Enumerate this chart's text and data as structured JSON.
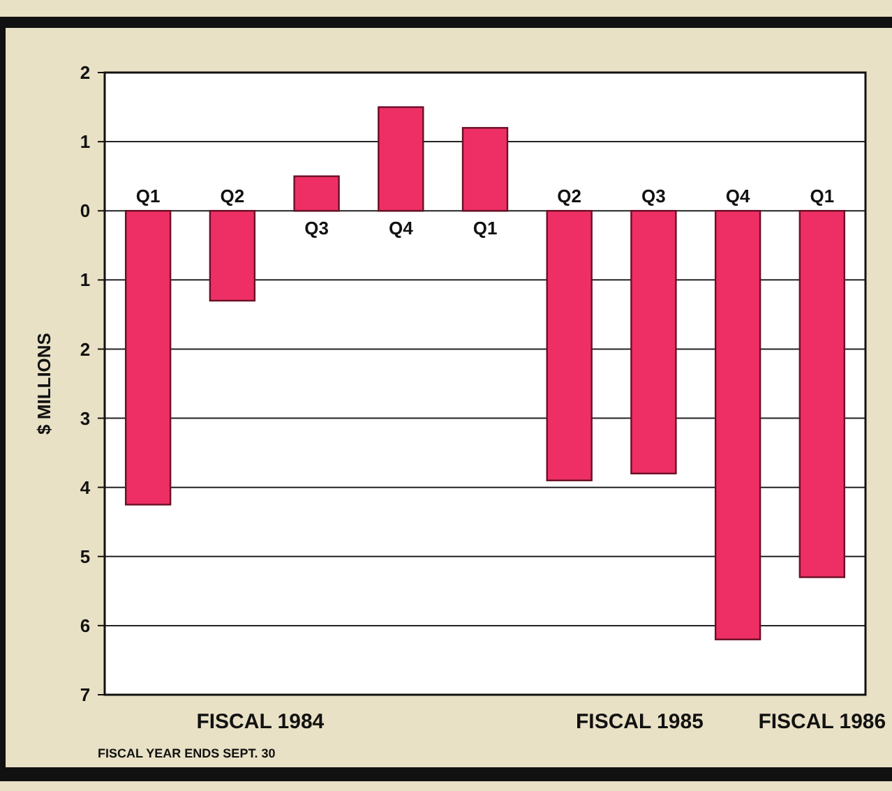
{
  "chart_data": {
    "type": "bar",
    "ylabel": "$ MILLIONS",
    "categories": [
      "Q1",
      "Q2",
      "Q3",
      "Q4",
      "Q1",
      "Q2",
      "Q3",
      "Q4",
      "Q1"
    ],
    "values": [
      -4.25,
      -1.3,
      0.5,
      1.5,
      1.2,
      -3.9,
      -3.8,
      -6.2,
      -5.3
    ],
    "color": "#ee2f66",
    "ylim": [
      -7,
      2
    ],
    "yticks": [
      2,
      1,
      0,
      {
        "value": -1,
        "label": "1"
      },
      {
        "value": -2,
        "label": "2"
      },
      {
        "value": -3,
        "label": "3"
      },
      {
        "value": -4,
        "label": "4"
      },
      {
        "value": -5,
        "label": "5"
      },
      {
        "value": -6,
        "label": "6"
      },
      {
        "value": -7,
        "label": "7"
      }
    ],
    "grid": "y",
    "annotations": [
      "FISCAL 1984",
      "FISCAL 1985",
      "FISCAL 1986",
      "FISCAL YEAR ENDS SEPT. 30"
    ]
  }
}
